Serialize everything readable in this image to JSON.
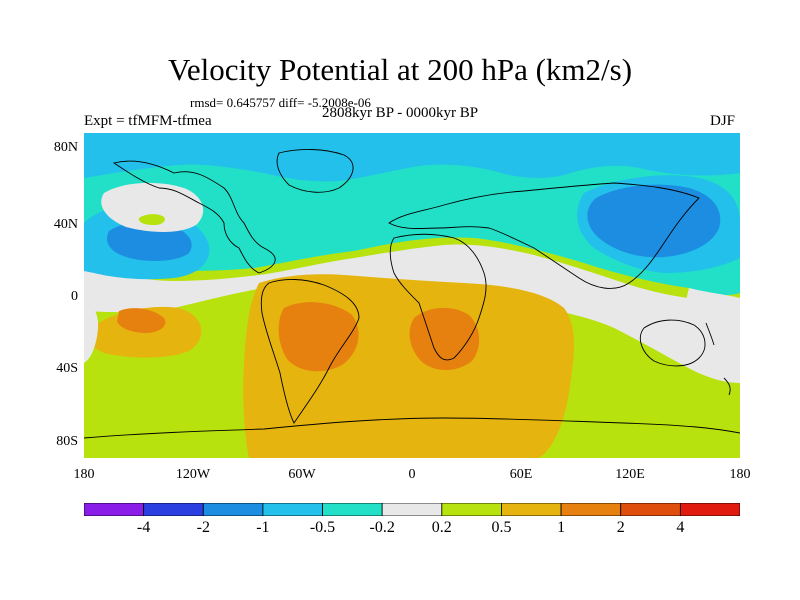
{
  "title": "Velocity Potential at 200 hPa (km2/s)",
  "stats": "rmsd= 0.645757 diff= -5.2008e-06",
  "period": "2808kyr BP - 0000kyr BP",
  "experiment": "Expt = tfMFM-tfmea",
  "season": "DJF",
  "map_data": {
    "projection": "cylindrical equidistant",
    "lon_range": [
      -180,
      180
    ],
    "lat_range": [
      -90,
      90
    ],
    "lat_ticks": [
      "80N",
      "40N",
      "0",
      "40S",
      "80S"
    ],
    "lon_ticks": [
      "180",
      "120W",
      "60W",
      "0",
      "60E",
      "120E",
      "180"
    ]
  },
  "colorbar": {
    "colors": [
      "#8a1ee8",
      "#2b3ee0",
      "#1c8de0",
      "#22c0ea",
      "#22e0c8",
      "#e8e8e8",
      "#b8e20e",
      "#e6b40e",
      "#e6800e",
      "#e04e0e",
      "#e01a0e"
    ],
    "labels": [
      "-4",
      "-2",
      "-1",
      "-0.5",
      "-0.2",
      "0.2",
      "0.5",
      "1",
      "2",
      "4"
    ]
  }
}
